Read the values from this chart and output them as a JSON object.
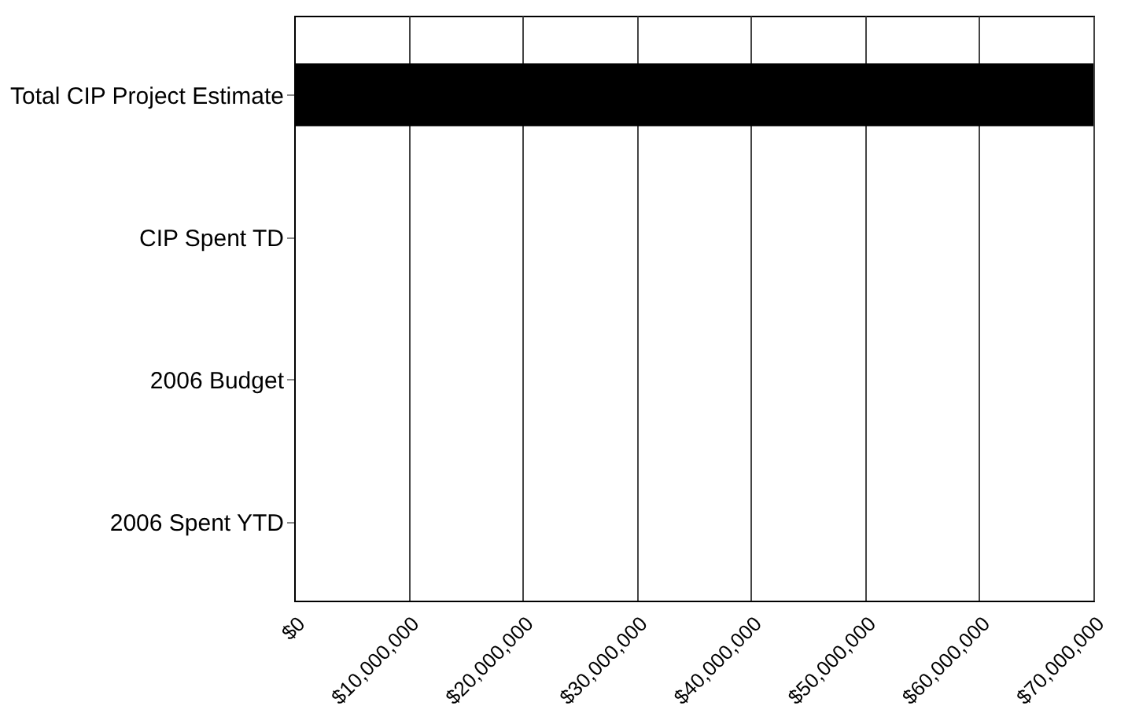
{
  "chart_data": {
    "type": "bar",
    "orientation": "horizontal",
    "categories": [
      "Total CIP Project Estimate",
      "CIP Spent TD",
      "2006 Budget",
      "2006 Spent YTD"
    ],
    "values": [
      70000000,
      0,
      0,
      0
    ],
    "color": "#000000",
    "xlim": [
      0,
      70000000
    ],
    "xticks": [
      {
        "value": 0,
        "label": "$0"
      },
      {
        "value": 10000000,
        "label": "$10,000,000"
      },
      {
        "value": 20000000,
        "label": "$20,000,000"
      },
      {
        "value": 30000000,
        "label": "$30,000,000"
      },
      {
        "value": 40000000,
        "label": "$40,000,000"
      },
      {
        "value": 50000000,
        "label": "$50,000,000"
      },
      {
        "value": 60000000,
        "label": "$60,000,000"
      },
      {
        "value": 70000000,
        "label": "$70,000,000"
      }
    ],
    "grid": "x"
  }
}
